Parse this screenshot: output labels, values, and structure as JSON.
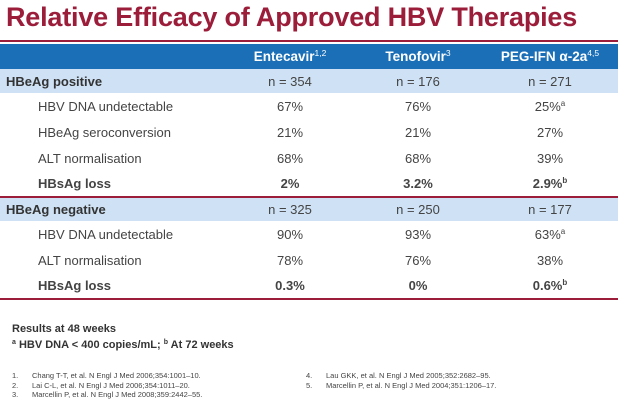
{
  "title": "Relative Efficacy of Approved HBV Therapies",
  "header": {
    "col1": {
      "name": "Entecavir",
      "sup": "1,2"
    },
    "col2": {
      "name": "Tenofovir",
      "sup": "3"
    },
    "col3": {
      "name": "PEG-IFN α-2a",
      "sup": "4,5"
    }
  },
  "groups": [
    {
      "label": "HBeAg positive",
      "n": [
        "n = 354",
        "n = 176",
        "n = 271"
      ],
      "rows": [
        {
          "label": "HBV DNA undetectable",
          "values": [
            "67%",
            "76%",
            "25%"
          ],
          "sups": [
            "",
            "",
            "a"
          ]
        },
        {
          "label": "HBeAg seroconversion",
          "values": [
            "21%",
            "21%",
            "27%"
          ],
          "sups": [
            "",
            "",
            ""
          ]
        },
        {
          "label": "ALT normalisation",
          "values": [
            "68%",
            "68%",
            "39%"
          ],
          "sups": [
            "",
            "",
            ""
          ]
        },
        {
          "label": "HBsAg loss",
          "values": [
            "2%",
            "3.2%",
            "2.9%"
          ],
          "sups": [
            "",
            "",
            "b"
          ]
        }
      ]
    },
    {
      "label": "HBeAg negative",
      "n": [
        "n = 325",
        "n = 250",
        "n = 177"
      ],
      "rows": [
        {
          "label": "HBV DNA undetectable",
          "values": [
            "90%",
            "93%",
            "63%"
          ],
          "sups": [
            "",
            "",
            "a"
          ]
        },
        {
          "label": "ALT normalisation",
          "values": [
            "78%",
            "76%",
            "38%"
          ],
          "sups": [
            "",
            "",
            ""
          ]
        },
        {
          "label": "HBsAg loss",
          "values": [
            "0.3%",
            "0%",
            "0.6%"
          ],
          "sups": [
            "",
            "",
            "b"
          ]
        }
      ]
    }
  ],
  "notes": {
    "line1": "Results at 48 weeks",
    "line2_sup_a": "a",
    "line2_a": " HBV DNA < 400 copies/mL; ",
    "line2_sup_b": "b",
    "line2_b": " At 72 weeks"
  },
  "references": [
    {
      "num": "1.",
      "text": "Chang T-T, et al. N Engl J Med 2006;354:1001–10."
    },
    {
      "num": "2.",
      "text": "Lai C-L, et al. N Engl J Med 2006;354:1011–20."
    },
    {
      "num": "3.",
      "text": "Marcellin P, et al. N Engl J Med 2008;359:2442–55."
    },
    {
      "num": "4.",
      "text": "Lau GKK, et al. N Engl J Med 2005;352:2682–95."
    },
    {
      "num": "5.",
      "text": "Marcellin P, et al. N Engl J Med 2004;351:1206–17."
    }
  ]
}
